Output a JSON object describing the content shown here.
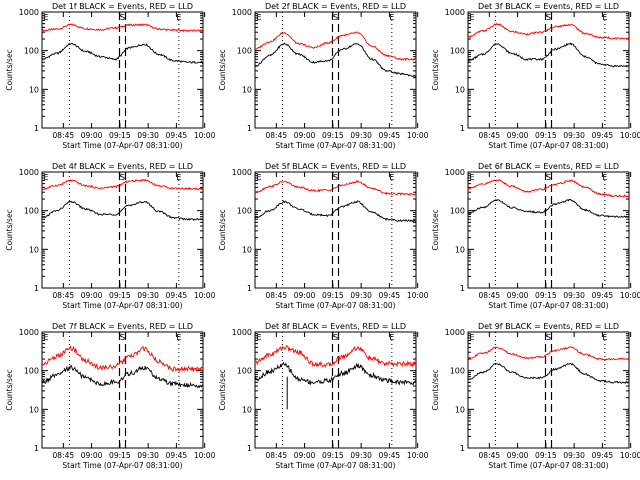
{
  "chart_data": [
    {
      "type": "line",
      "title": "Det 1f BLACK = Events, RED = LLD",
      "xlabel": "Start Time (07-Apr-07 08:31:00)",
      "ylabel": "Counts/sec",
      "yscale": "log",
      "ylim": [
        1,
        1000
      ],
      "xlim": [
        0,
        110
      ],
      "xtick_labels": [
        "08:45",
        "09:00",
        "09:15",
        "09:30",
        "09:45",
        "10:00"
      ],
      "ytick_labels": [
        "1",
        "10",
        "100",
        "1000"
      ],
      "markers": [
        "E",
        "S",
        "E"
      ],
      "series": [
        {
          "name": "LLD",
          "color": "#ff0000",
          "x": [
            0,
            10,
            20,
            30,
            40,
            50,
            60,
            70,
            80,
            90,
            100,
            110
          ],
          "values": [
            330,
            360,
            470,
            370,
            350,
            390,
            460,
            470,
            360,
            340,
            330,
            330
          ]
        },
        {
          "name": "Events",
          "color": "#000000",
          "x": [
            0,
            10,
            20,
            30,
            40,
            50,
            60,
            70,
            80,
            90,
            100,
            110
          ],
          "values": [
            60,
            85,
            150,
            95,
            70,
            60,
            120,
            145,
            80,
            55,
            50,
            50
          ]
        }
      ]
    },
    {
      "type": "line",
      "title": "Det 2f BLACK = Events, RED = LLD",
      "xlabel": "Start Time (07-Apr-07 08:31:00)",
      "ylabel": "Counts/sec",
      "yscale": "log",
      "ylim": [
        1,
        1000
      ],
      "xlim": [
        0,
        110
      ],
      "xtick_labels": [
        "08:45",
        "09:00",
        "09:15",
        "09:30",
        "09:45",
        "10:00"
      ],
      "ytick_labels": [
        "1",
        "10",
        "100",
        "1000"
      ],
      "markers": [
        "E",
        "S",
        "E"
      ],
      "series": [
        {
          "name": "LLD",
          "color": "#ff0000",
          "x": [
            0,
            10,
            20,
            30,
            40,
            50,
            60,
            70,
            80,
            90,
            100,
            110
          ],
          "values": [
            110,
            170,
            290,
            150,
            120,
            160,
            250,
            290,
            130,
            75,
            60,
            60
          ]
        },
        {
          "name": "Events",
          "color": "#000000",
          "x": [
            0,
            10,
            20,
            30,
            40,
            50,
            60,
            70,
            80,
            90,
            100,
            110
          ],
          "values": [
            40,
            75,
            150,
            80,
            50,
            55,
            110,
            150,
            60,
            30,
            25,
            22
          ]
        }
      ]
    },
    {
      "type": "line",
      "title": "Det 3f BLACK = Events, RED = LLD",
      "xlabel": "Start Time (07-Apr-07 08:31:00)",
      "ylabel": "Counts/sec",
      "yscale": "log",
      "ylim": [
        1,
        1000
      ],
      "xlim": [
        0,
        110
      ],
      "xtick_labels": [
        "08:45",
        "09:00",
        "09:15",
        "09:30",
        "09:45",
        "10:00"
      ],
      "ytick_labels": [
        "1",
        "10",
        "100",
        "1000"
      ],
      "markers": [
        "E",
        "S",
        "E"
      ],
      "series": [
        {
          "name": "LLD",
          "color": "#ff0000",
          "x": [
            0,
            10,
            20,
            30,
            40,
            50,
            60,
            70,
            80,
            90,
            100,
            110
          ],
          "values": [
            230,
            320,
            480,
            310,
            270,
            300,
            420,
            470,
            280,
            220,
            210,
            210
          ]
        },
        {
          "name": "Events",
          "color": "#000000",
          "x": [
            0,
            10,
            20,
            30,
            40,
            50,
            60,
            70,
            80,
            90,
            100,
            110
          ],
          "values": [
            55,
            80,
            150,
            85,
            60,
            60,
            110,
            150,
            70,
            45,
            40,
            40
          ]
        }
      ]
    },
    {
      "type": "line",
      "title": "Det 4f BLACK = Events, RED = LLD",
      "xlabel": "Start Time (07-Apr-07 08:31:00)",
      "ylabel": "Counts/sec",
      "yscale": "log",
      "ylim": [
        1,
        1000
      ],
      "xlim": [
        0,
        110
      ],
      "xtick_labels": [
        "08:45",
        "09:00",
        "09:15",
        "09:30",
        "09:45",
        "10:00"
      ],
      "ytick_labels": [
        "1",
        "10",
        "100",
        "1000"
      ],
      "markers": [
        "E",
        "S",
        "E"
      ],
      "series": [
        {
          "name": "LLD",
          "color": "#ff0000",
          "x": [
            0,
            10,
            20,
            30,
            40,
            50,
            60,
            70,
            80,
            90,
            100,
            110
          ],
          "values": [
            360,
            450,
            600,
            440,
            380,
            420,
            580,
            620,
            440,
            380,
            370,
            370
          ]
        },
        {
          "name": "Events",
          "color": "#000000",
          "x": [
            0,
            10,
            20,
            30,
            40,
            50,
            60,
            70,
            80,
            90,
            100,
            110
          ],
          "values": [
            65,
            100,
            170,
            110,
            80,
            80,
            140,
            170,
            95,
            65,
            60,
            60
          ]
        }
      ]
    },
    {
      "type": "line",
      "title": "Det 5f BLACK = Events, RED = LLD",
      "xlabel": "Start Time (07-Apr-07 08:31:00)",
      "ylabel": "Counts/sec",
      "yscale": "log",
      "ylim": [
        1,
        1000
      ],
      "xlim": [
        0,
        110
      ],
      "xtick_labels": [
        "08:45",
        "09:00",
        "09:15",
        "09:30",
        "09:45",
        "10:00"
      ],
      "ytick_labels": [
        "1",
        "10",
        "100",
        "1000"
      ],
      "markers": [
        "E",
        "S",
        "E"
      ],
      "series": [
        {
          "name": "LLD",
          "color": "#ff0000",
          "x": [
            0,
            10,
            20,
            30,
            40,
            50,
            60,
            70,
            80,
            90,
            100,
            110
          ],
          "values": [
            300,
            420,
            560,
            400,
            330,
            340,
            460,
            560,
            380,
            280,
            270,
            270
          ]
        },
        {
          "name": "Events",
          "color": "#000000",
          "x": [
            0,
            10,
            20,
            30,
            40,
            50,
            60,
            70,
            80,
            90,
            100,
            110
          ],
          "values": [
            65,
            100,
            170,
            110,
            80,
            75,
            130,
            170,
            90,
            60,
            55,
            55
          ]
        }
      ]
    },
    {
      "type": "line",
      "title": "Det 6f BLACK = Events, RED = LLD",
      "xlabel": "Start Time (07-Apr-07 08:31:00)",
      "ylabel": "Counts/sec",
      "yscale": "log",
      "ylim": [
        1,
        1000
      ],
      "xlim": [
        0,
        110
      ],
      "xtick_labels": [
        "08:45",
        "09:00",
        "09:15",
        "09:30",
        "09:45",
        "10:00"
      ],
      "ytick_labels": [
        "1",
        "10",
        "100",
        "1000"
      ],
      "markers": [
        "E",
        "S",
        "E"
      ],
      "series": [
        {
          "name": "LLD",
          "color": "#ff0000",
          "x": [
            0,
            10,
            20,
            30,
            40,
            50,
            60,
            70,
            80,
            90,
            100,
            110
          ],
          "values": [
            380,
            480,
            620,
            430,
            310,
            350,
            480,
            600,
            400,
            270,
            240,
            240
          ]
        },
        {
          "name": "Events",
          "color": "#000000",
          "x": [
            0,
            10,
            20,
            30,
            40,
            50,
            60,
            70,
            80,
            90,
            100,
            110
          ],
          "values": [
            85,
            120,
            190,
            120,
            95,
            90,
            150,
            190,
            105,
            75,
            70,
            70
          ]
        }
      ]
    },
    {
      "type": "line",
      "title": "Det 7f BLACK = Events, RED = LLD",
      "xlabel": "Start Time (07-Apr-07 08:31:00)",
      "ylabel": "Counts/sec",
      "yscale": "log",
      "ylim": [
        1,
        1000
      ],
      "xlim": [
        0,
        110
      ],
      "xtick_labels": [
        "08:45",
        "09:00",
        "09:15",
        "09:30",
        "09:45",
        "10:00"
      ],
      "ytick_labels": [
        "1",
        "10",
        "100",
        "1000"
      ],
      "markers": [
        "E",
        "S",
        "E"
      ],
      "series": [
        {
          "name": "LLD",
          "color": "#ff0000",
          "x": [
            0,
            10,
            20,
            30,
            40,
            50,
            60,
            70,
            80,
            90,
            100,
            110
          ],
          "values": [
            150,
            230,
            380,
            180,
            120,
            130,
            230,
            370,
            170,
            110,
            110,
            110
          ]
        },
        {
          "name": "Events",
          "color": "#000000",
          "x": [
            0,
            10,
            20,
            30,
            40,
            50,
            60,
            70,
            80,
            90,
            100,
            110
          ],
          "values": [
            50,
            75,
            120,
            65,
            45,
            50,
            85,
            120,
            60,
            45,
            42,
            42
          ]
        }
      ]
    },
    {
      "type": "line",
      "title": "Det 8f BLACK = Events, RED = LLD",
      "xlabel": "Start Time (07-Apr-07 08:31:00)",
      "ylabel": "Counts/sec",
      "yscale": "log",
      "ylim": [
        1,
        1000
      ],
      "xlim": [
        0,
        110
      ],
      "xtick_labels": [
        "08:45",
        "09:00",
        "09:15",
        "09:30",
        "09:45",
        "10:00"
      ],
      "ytick_labels": [
        "1",
        "10",
        "100",
        "1000"
      ],
      "markers": [
        "E",
        "S",
        "E"
      ],
      "series": [
        {
          "name": "LLD",
          "color": "#ff0000",
          "x": [
            0,
            10,
            20,
            30,
            40,
            50,
            60,
            70,
            80,
            90,
            100,
            110
          ],
          "values": [
            160,
            260,
            400,
            300,
            150,
            140,
            230,
            390,
            200,
            150,
            150,
            150
          ]
        },
        {
          "name": "Events",
          "color": "#000000",
          "x": [
            0,
            10,
            20,
            30,
            40,
            50,
            60,
            70,
            80,
            90,
            100,
            110
          ],
          "values": [
            60,
            95,
            140,
            60,
            50,
            55,
            85,
            130,
            75,
            55,
            50,
            50
          ]
        }
      ]
    },
    {
      "type": "line",
      "title": "Det 9f BLACK = Events, RED = LLD",
      "xlabel": "Start Time (07-Apr-07 08:31:00)",
      "ylabel": "Counts/sec",
      "yscale": "log",
      "ylim": [
        1,
        1000
      ],
      "xlim": [
        0,
        110
      ],
      "xtick_labels": [
        "08:45",
        "09:00",
        "09:15",
        "09:30",
        "09:45",
        "10:00"
      ],
      "ytick_labels": [
        "1",
        "10",
        "100",
        "1000"
      ],
      "markers": [
        "E",
        "S",
        "E"
      ],
      "series": [
        {
          "name": "LLD",
          "color": "#ff0000",
          "x": [
            0,
            10,
            20,
            30,
            40,
            50,
            60,
            70,
            80,
            90,
            100,
            110
          ],
          "values": [
            210,
            280,
            400,
            270,
            210,
            230,
            330,
            400,
            260,
            200,
            200,
            200
          ]
        },
        {
          "name": "Events",
          "color": "#000000",
          "x": [
            0,
            10,
            20,
            30,
            40,
            50,
            60,
            70,
            80,
            90,
            100,
            110
          ],
          "values": [
            60,
            90,
            150,
            90,
            65,
            65,
            110,
            150,
            80,
            55,
            50,
            50
          ]
        }
      ]
    }
  ]
}
